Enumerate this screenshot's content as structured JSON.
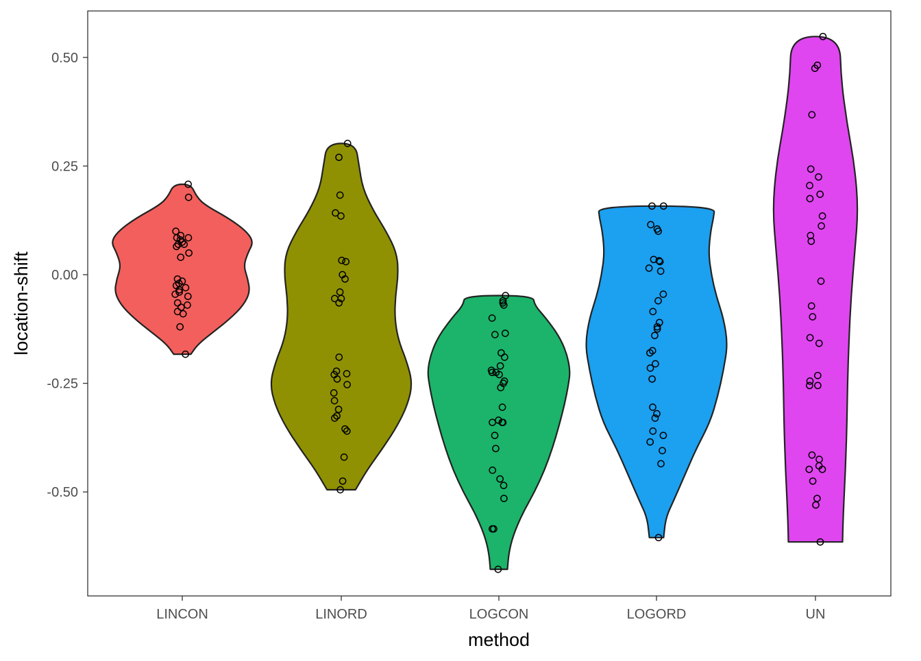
{
  "chart_data": {
    "type": "violin",
    "xlabel": "method",
    "ylabel": "location-shift",
    "ylim": [
      -0.74,
      0.6
    ],
    "yticks": [
      -0.5,
      -0.25,
      0.0,
      0.25,
      0.5
    ],
    "ytick_labels": [
      "-0.50",
      "-0.25",
      "0.00",
      "0.25",
      "0.50"
    ],
    "grid": false,
    "legend": "none",
    "categories": [
      "LINCON",
      "LINORD",
      "LOGCON",
      "LOGORD",
      "UN"
    ],
    "colors": [
      "#F25F5C",
      "#8F9103",
      "#1BB46A",
      "#1CA0F0",
      "#DF46F0"
    ],
    "series": [
      {
        "category": "LINCON",
        "range": [
          -0.183,
          0.208
        ],
        "density": [
          [
            -0.183,
            0.12
          ],
          [
            -0.16,
            0.22
          ],
          [
            -0.13,
            0.45
          ],
          [
            -0.1,
            0.68
          ],
          [
            -0.07,
            0.86
          ],
          [
            -0.04,
            0.95
          ],
          [
            -0.01,
            0.92
          ],
          [
            0.02,
            0.86
          ],
          [
            0.05,
            0.92
          ],
          [
            0.075,
            1.0
          ],
          [
            0.1,
            0.9
          ],
          [
            0.13,
            0.65
          ],
          [
            0.16,
            0.32
          ],
          [
            0.18,
            0.2
          ],
          [
            0.208,
            0.12
          ]
        ],
        "points": [
          0.208,
          0.178,
          0.1,
          0.09,
          0.085,
          0.085,
          0.08,
          0.075,
          0.07,
          0.07,
          0.065,
          0.05,
          0.04,
          -0.01,
          -0.015,
          -0.02,
          -0.025,
          -0.03,
          -0.035,
          -0.04,
          -0.045,
          -0.05,
          -0.065,
          -0.07,
          -0.075,
          -0.085,
          -0.09,
          -0.12,
          -0.183
        ]
      },
      {
        "category": "LINORD",
        "range": [
          -0.495,
          0.302
        ],
        "density": [
          [
            -0.495,
            0.2
          ],
          [
            -0.45,
            0.36
          ],
          [
            -0.4,
            0.58
          ],
          [
            -0.35,
            0.78
          ],
          [
            -0.3,
            0.93
          ],
          [
            -0.25,
            1.0
          ],
          [
            -0.2,
            0.92
          ],
          [
            -0.15,
            0.8
          ],
          [
            -0.1,
            0.75
          ],
          [
            -0.05,
            0.76
          ],
          [
            0.0,
            0.8
          ],
          [
            0.05,
            0.78
          ],
          [
            0.1,
            0.63
          ],
          [
            0.15,
            0.44
          ],
          [
            0.2,
            0.3
          ],
          [
            0.25,
            0.25
          ],
          [
            0.302,
            0.2
          ]
        ],
        "points": [
          0.302,
          0.27,
          0.183,
          0.142,
          0.135,
          0.033,
          0.03,
          0.0,
          -0.01,
          -0.04,
          -0.055,
          -0.055,
          -0.065,
          -0.19,
          -0.222,
          -0.23,
          -0.228,
          -0.24,
          -0.253,
          -0.272,
          -0.29,
          -0.31,
          -0.325,
          -0.33,
          -0.355,
          -0.36,
          -0.42,
          -0.475,
          -0.495
        ]
      },
      {
        "category": "LOGCON",
        "range": [
          -0.678,
          -0.048
        ],
        "density": [
          [
            -0.678,
            0.12
          ],
          [
            -0.64,
            0.14
          ],
          [
            -0.6,
            0.2
          ],
          [
            -0.55,
            0.33
          ],
          [
            -0.5,
            0.5
          ],
          [
            -0.45,
            0.64
          ],
          [
            -0.4,
            0.75
          ],
          [
            -0.35,
            0.84
          ],
          [
            -0.3,
            0.92
          ],
          [
            -0.25,
            0.98
          ],
          [
            -0.22,
            1.0
          ],
          [
            -0.18,
            0.95
          ],
          [
            -0.14,
            0.84
          ],
          [
            -0.1,
            0.66
          ],
          [
            -0.07,
            0.5
          ],
          [
            -0.048,
            0.48
          ]
        ],
        "points": [
          -0.048,
          -0.06,
          -0.065,
          -0.07,
          -0.1,
          -0.135,
          -0.138,
          -0.18,
          -0.19,
          -0.21,
          -0.22,
          -0.225,
          -0.225,
          -0.23,
          -0.245,
          -0.25,
          -0.26,
          -0.305,
          -0.335,
          -0.34,
          -0.34,
          -0.34,
          -0.37,
          -0.4,
          -0.45,
          -0.47,
          -0.485,
          -0.515,
          -0.585,
          -0.585,
          -0.678
        ]
      },
      {
        "category": "LOGORD",
        "range": [
          -0.605,
          0.158
        ],
        "density": [
          [
            -0.605,
            0.1
          ],
          [
            -0.56,
            0.13
          ],
          [
            -0.52,
            0.24
          ],
          [
            -0.46,
            0.4
          ],
          [
            -0.4,
            0.56
          ],
          [
            -0.34,
            0.75
          ],
          [
            -0.28,
            0.86
          ],
          [
            -0.22,
            0.94
          ],
          [
            -0.16,
            1.0
          ],
          [
            -0.1,
            0.94
          ],
          [
            -0.05,
            0.84
          ],
          [
            0.0,
            0.77
          ],
          [
            0.05,
            0.73
          ],
          [
            0.1,
            0.76
          ],
          [
            0.13,
            0.8
          ],
          [
            0.158,
            0.82
          ]
        ],
        "points": [
          0.158,
          0.158,
          0.115,
          0.105,
          0.1,
          0.035,
          0.032,
          0.03,
          0.015,
          0.008,
          -0.045,
          -0.06,
          -0.085,
          -0.11,
          -0.12,
          -0.125,
          -0.14,
          -0.175,
          -0.18,
          -0.205,
          -0.215,
          -0.24,
          -0.305,
          -0.32,
          -0.33,
          -0.36,
          -0.37,
          -0.385,
          -0.405,
          -0.435,
          -0.605
        ]
      },
      {
        "category": "UN",
        "range": [
          -0.615,
          0.548
        ],
        "density": [
          [
            -0.615,
            0.38
          ],
          [
            -0.55,
            0.39
          ],
          [
            -0.45,
            0.42
          ],
          [
            -0.35,
            0.44
          ],
          [
            -0.25,
            0.45
          ],
          [
            -0.15,
            0.47
          ],
          [
            -0.05,
            0.5
          ],
          [
            0.05,
            0.55
          ],
          [
            0.15,
            0.6
          ],
          [
            0.25,
            0.55
          ],
          [
            0.35,
            0.44
          ],
          [
            0.45,
            0.36
          ],
          [
            0.548,
            0.34
          ]
        ],
        "points": [
          0.548,
          0.482,
          0.475,
          0.368,
          0.243,
          0.225,
          0.205,
          0.185,
          0.175,
          0.135,
          0.112,
          0.09,
          0.077,
          -0.015,
          -0.072,
          -0.097,
          -0.145,
          -0.158,
          -0.232,
          -0.245,
          -0.255,
          -0.255,
          -0.415,
          -0.425,
          -0.44,
          -0.448,
          -0.448,
          -0.475,
          -0.515,
          -0.53,
          -0.615
        ]
      }
    ]
  }
}
